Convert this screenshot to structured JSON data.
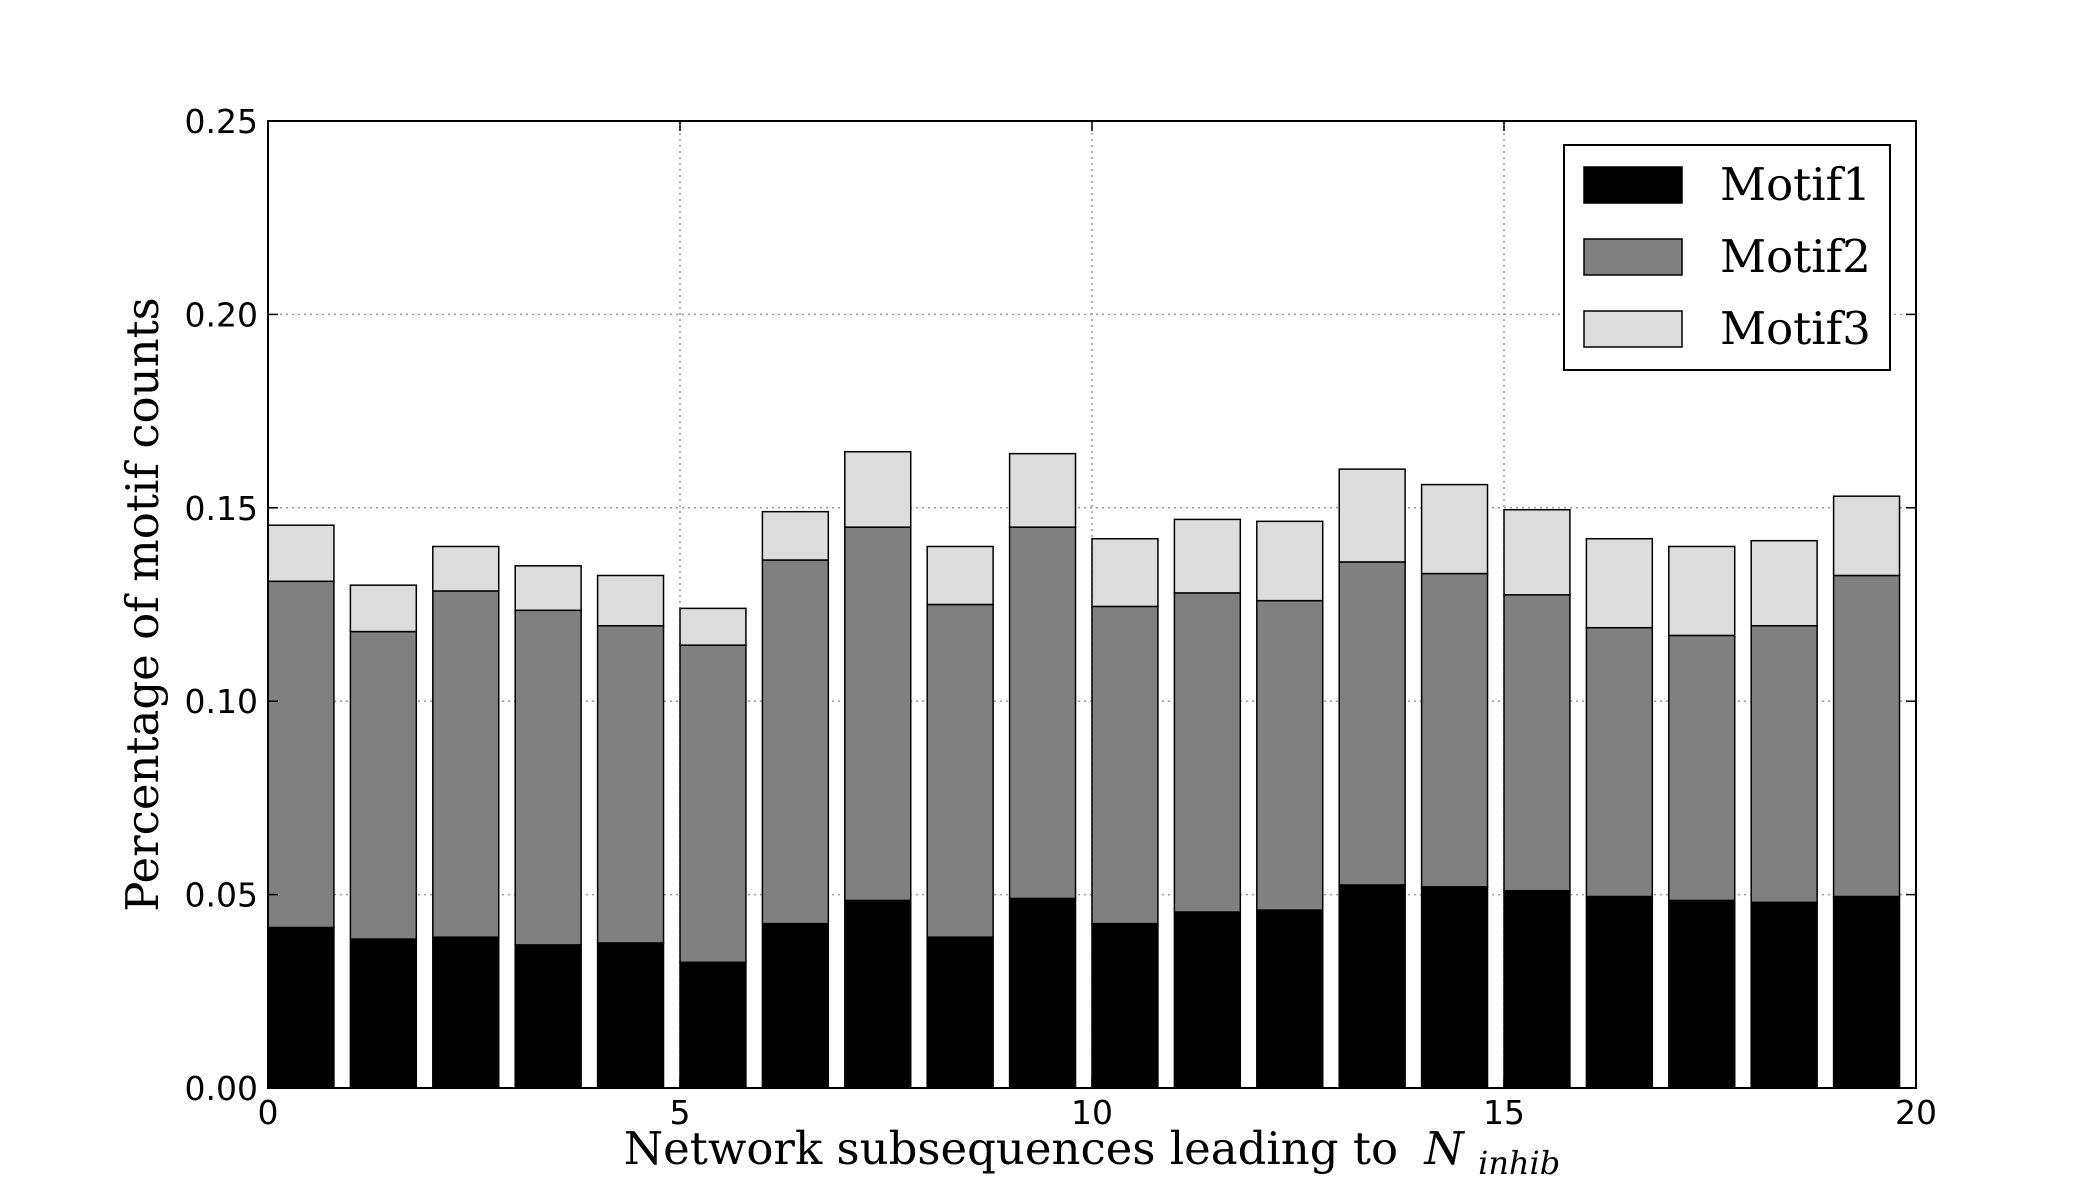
{
  "chart_data": {
    "type": "bar",
    "stacked": true,
    "xlabel_main": "Network subsequences leading to",
    "xlabel_symbol": "N",
    "xlabel_subscript": "inhib",
    "ylabel": "Percentage of motif counts",
    "xlim": [
      0,
      20
    ],
    "ylim": [
      0,
      0.25
    ],
    "x_ticks": [
      0,
      5,
      10,
      15,
      20
    ],
    "y_ticks": [
      0.0,
      0.05,
      0.1,
      0.15,
      0.2,
      0.25
    ],
    "y_tick_labels": [
      "0.00",
      "0.05",
      "0.10",
      "0.15",
      "0.20",
      "0.25"
    ],
    "grid": true,
    "bar_width": 0.8,
    "legend_position": "top-right",
    "x": [
      0,
      1,
      2,
      3,
      4,
      5,
      6,
      7,
      8,
      9,
      10,
      11,
      12,
      13,
      14,
      15,
      16,
      17,
      18,
      19
    ],
    "series": [
      {
        "name": "Motif1",
        "color": "#000000",
        "values": [
          0.0415,
          0.0385,
          0.039,
          0.037,
          0.0375,
          0.0325,
          0.0425,
          0.0485,
          0.039,
          0.049,
          0.0425,
          0.0455,
          0.046,
          0.0525,
          0.052,
          0.051,
          0.0495,
          0.0485,
          0.048,
          0.0495
        ]
      },
      {
        "name": "Motif2",
        "color": "#808080",
        "values": [
          0.0895,
          0.0795,
          0.0895,
          0.0865,
          0.082,
          0.082,
          0.094,
          0.0965,
          0.086,
          0.096,
          0.082,
          0.0825,
          0.08,
          0.0835,
          0.081,
          0.0765,
          0.0695,
          0.0685,
          0.0715,
          0.083
        ]
      },
      {
        "name": "Motif3",
        "color": "#dcdcdc",
        "values": [
          0.0145,
          0.012,
          0.0115,
          0.0115,
          0.013,
          0.0095,
          0.0125,
          0.0195,
          0.015,
          0.019,
          0.0175,
          0.019,
          0.0205,
          0.024,
          0.023,
          0.022,
          0.023,
          0.023,
          0.022,
          0.0205
        ]
      }
    ]
  }
}
